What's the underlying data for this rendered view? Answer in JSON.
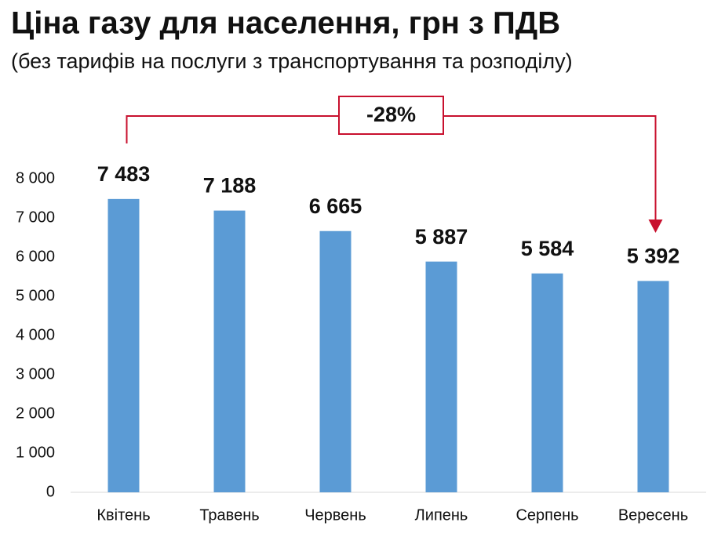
{
  "chart_data": {
    "type": "bar",
    "title": "Ціна газу для населення, грн з ПДВ",
    "subtitle": "(без тарифів на послуги з транспортування та розподілу)",
    "categories": [
      "Квітень",
      "Травень",
      "Червень",
      "Липень",
      "Серпень",
      "Вересень"
    ],
    "values": [
      7483,
      7188,
      6665,
      5887,
      5584,
      5392
    ],
    "value_labels": [
      "7 483",
      "7 188",
      "6 665",
      "5 887",
      "5 584",
      "5 392"
    ],
    "color": "#5b9bd5",
    "ylim": [
      0,
      8000
    ],
    "yticks": [
      0,
      {
        "value": 1000,
        "label": "1 000"
      },
      {
        "value": 2000,
        "label": "2 000"
      },
      {
        "value": 3000,
        "label": "3 000"
      },
      {
        "value": 4000,
        "label": "4 000"
      },
      {
        "value": 5000,
        "label": "5 000"
      },
      {
        "value": 6000,
        "label": "6 000"
      },
      {
        "value": 7000,
        "label": "7 000"
      },
      {
        "value": 8000,
        "label": "8 000"
      }
    ],
    "grid": false,
    "annotation": "-28%"
  }
}
